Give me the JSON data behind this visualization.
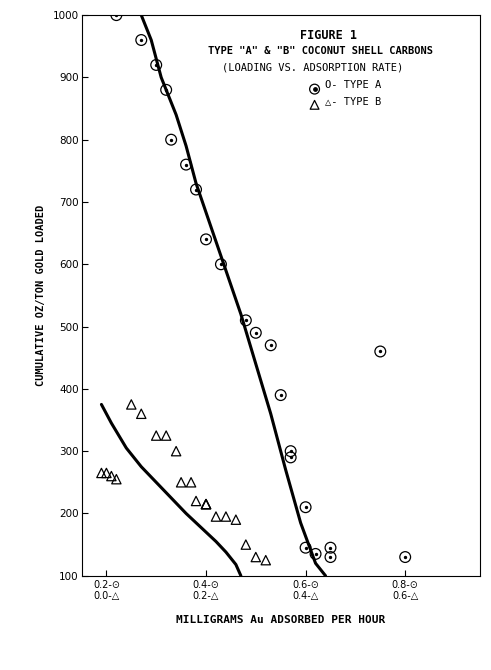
{
  "title_line1": "FIGURE 1",
  "title_line2": "TYPE \"A\" & \"B\" COCONUT SHELL CARBONS",
  "title_line3": "(LOADING VS. ADSORPTION RATE)",
  "xlabel": "MILLIGRAMS Au ADSORBED PER HOUR",
  "ylabel": "CUMULATIVE OZ/TON GOLD LOADED",
  "xlim": [
    0.15,
    0.95
  ],
  "ylim": [
    100,
    1000
  ],
  "xticks_a": [
    0.2,
    0.4,
    0.6,
    0.8
  ],
  "xticks_b": [
    0.0,
    0.2,
    0.4,
    0.6
  ],
  "yticks": [
    100,
    200,
    300,
    400,
    500,
    600,
    700,
    800,
    900,
    1000
  ],
  "type_a_x": [
    0.22,
    0.27,
    0.3,
    0.32,
    0.33,
    0.36,
    0.38,
    0.4,
    0.43,
    0.48,
    0.5,
    0.53,
    0.55,
    0.57,
    0.57,
    0.6,
    0.6,
    0.62,
    0.65,
    0.65,
    0.75,
    0.8
  ],
  "type_a_y": [
    1000,
    960,
    920,
    880,
    800,
    760,
    720,
    640,
    600,
    510,
    490,
    470,
    390,
    300,
    290,
    210,
    145,
    135,
    145,
    130,
    460,
    130
  ],
  "type_b_x": [
    0.19,
    0.2,
    0.21,
    0.22,
    0.25,
    0.27,
    0.3,
    0.32,
    0.34,
    0.35,
    0.37,
    0.38,
    0.4,
    0.4,
    0.4,
    0.42,
    0.44,
    0.46,
    0.48,
    0.5,
    0.52
  ],
  "type_b_y": [
    265,
    265,
    260,
    255,
    375,
    360,
    325,
    325,
    300,
    250,
    250,
    220,
    215,
    215,
    215,
    195,
    195,
    190,
    150,
    130,
    125
  ],
  "curve_a_x": [
    0.27,
    0.29,
    0.31,
    0.34,
    0.36,
    0.38,
    0.41,
    0.44,
    0.47,
    0.5,
    0.53,
    0.56,
    0.59,
    0.62,
    0.64
  ],
  "curve_a_y": [
    1000,
    960,
    900,
    840,
    790,
    730,
    660,
    590,
    520,
    440,
    360,
    270,
    185,
    120,
    100
  ],
  "curve_b_x": [
    0.19,
    0.21,
    0.24,
    0.27,
    0.3,
    0.33,
    0.36,
    0.38,
    0.4,
    0.42,
    0.44,
    0.46,
    0.47
  ],
  "curve_b_y": [
    375,
    345,
    305,
    275,
    250,
    225,
    200,
    185,
    170,
    155,
    138,
    118,
    100
  ],
  "bg_color": "#ffffff",
  "text_color": "#000000",
  "curve_color": "#000000"
}
